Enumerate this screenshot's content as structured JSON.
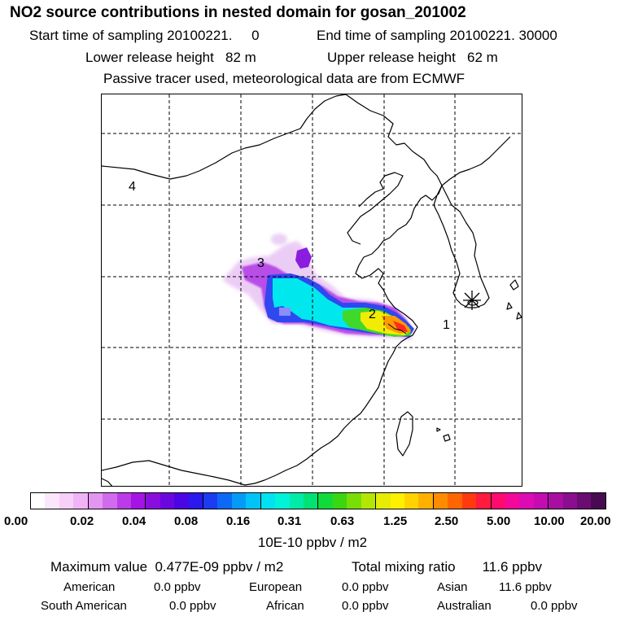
{
  "title": "NO2 source contributions in nested domain for gosan_201002",
  "sampling": {
    "start": "Start time of sampling 20100221.     0",
    "end": "End time of sampling 20100221. 30000"
  },
  "release": {
    "lower": "Lower release height   82 m",
    "upper": "Upper release height   62 m"
  },
  "note": "Passive tracer used, meteorological data are from ECMWF",
  "map": {
    "region_labels": [
      "4",
      "3",
      "2",
      "1"
    ],
    "receptor_icon": "asterisk-icon"
  },
  "colorbar": {
    "ticks": [
      "0.00",
      "0.02",
      "0.04",
      "0.08",
      "0.16",
      "0.31",
      "0.63",
      "1.25",
      "2.50",
      "5.00",
      "10.00",
      "20.00"
    ],
    "units": "10E-10 ppbv / m2",
    "colors": [
      "#ffffff",
      "#fbe6fc",
      "#f7cff9",
      "#f0b4f6",
      "#e395f2",
      "#cf6bec",
      "#bb3be8",
      "#a414e4",
      "#8a0ddf",
      "#6c06de",
      "#4a06e3",
      "#2a18ec",
      "#1a3cf2",
      "#0e68f6",
      "#049af7",
      "#00c4f7",
      "#00e2f1",
      "#00f2d8",
      "#00eba8",
      "#00e274",
      "#0fdc3a",
      "#3ad60f",
      "#78de05",
      "#b3e604",
      "#e6ec04",
      "#fff000",
      "#ffd200",
      "#ffb000",
      "#ff8c00",
      "#ff6600",
      "#ff3a10",
      "#ff1a40",
      "#ff0a6e",
      "#f4089a",
      "#de0ab4",
      "#c40cb0",
      "#a80ea2",
      "#8a0e8e",
      "#6a0c72",
      "#4a0a52"
    ]
  },
  "summary": {
    "max": "Maximum value  0.477E-09 ppbv / m2",
    "total": "Total mixing ratio       11.6 ppbv"
  },
  "regions": [
    {
      "name": "American",
      "value": "0.0 ppbv"
    },
    {
      "name": "European",
      "value": "0.0 ppbv"
    },
    {
      "name": "Asian",
      "value": "11.6 ppbv"
    },
    {
      "name": "South American",
      "value": "0.0 ppbv"
    },
    {
      "name": "African",
      "value": "0.0 ppbv"
    },
    {
      "name": "Australian",
      "value": "0.0 ppbv"
    }
  ]
}
